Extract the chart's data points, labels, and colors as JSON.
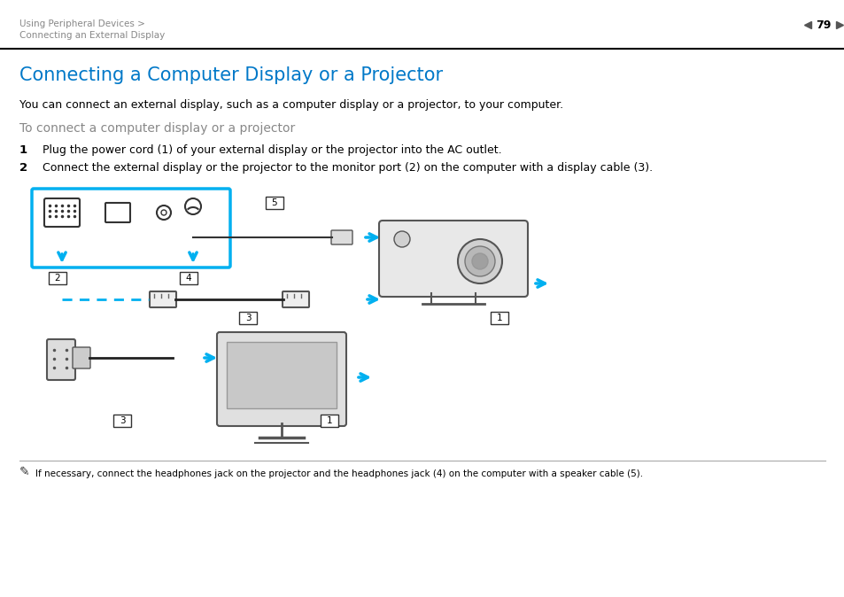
{
  "page_number": "79",
  "breadcrumb_line1": "Using Peripheral Devices >",
  "breadcrumb_line2": "Connecting an External Display",
  "title": "Connecting a Computer Display or a Projector",
  "intro_text": "You can connect an external display, such as a computer display or a projector, to your computer.",
  "subtitle": "To connect a computer display or a projector",
  "step1_num": "1",
  "step1_text": "Plug the power cord (1) of your external display or the projector into the AC outlet.",
  "step2_num": "2",
  "step2_text": "Connect the external display or the projector to the monitor port (2) on the computer with a display cable (3).",
  "note_text": "If necessary, connect the headphones jack on the projector and the headphones jack (4) on the computer with a speaker cable (5).",
  "title_color": "#0078c8",
  "subtitle_color": "#888888",
  "breadcrumb_color": "#888888",
  "body_color": "#000000",
  "bg_color": "#ffffff",
  "diagram_border_color": "#00b0f0",
  "arrow_color": "#00b0f0",
  "dashed_line_color": "#00b0f0"
}
